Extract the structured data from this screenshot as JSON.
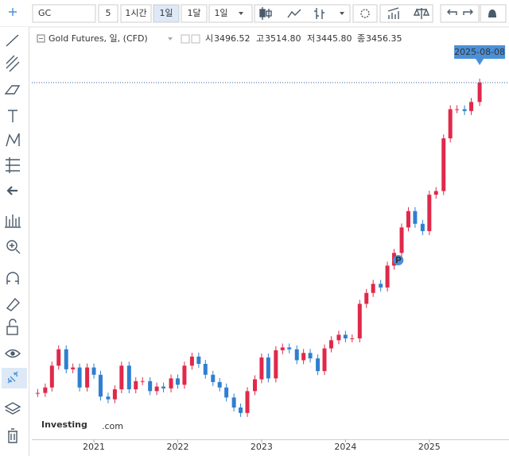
{
  "toolbar": {
    "symbol": "GC",
    "buttons": [
      "5",
      "1시간",
      "1일",
      "1달",
      "1일"
    ]
  },
  "chart_data": {
    "type": "candlestick",
    "title": "Gold Futures, 일, (CFD)",
    "ohlc": [
      {
        "label": "시",
        "value": "3496.52"
      },
      {
        "label": "고",
        "value": "3514.80"
      },
      {
        "label": "저",
        "value": "3445.80"
      },
      {
        "label": "종",
        "value": "3456.35"
      }
    ],
    "last_date": "2025-08-08",
    "marker": {
      "label": "P",
      "x": 2024.63,
      "y": 2480
    },
    "logo": [
      "Investing",
      ".com"
    ],
    "x": [
      2020.33,
      2020.42,
      2020.5,
      2020.58,
      2020.67,
      2020.75,
      2020.83,
      2020.92,
      2021.0,
      2021.08,
      2021.17,
      2021.25,
      2021.33,
      2021.42,
      2021.5,
      2021.58,
      2021.67,
      2021.75,
      2021.83,
      2021.92,
      2022.0,
      2022.08,
      2022.17,
      2022.25,
      2022.33,
      2022.42,
      2022.5,
      2022.58,
      2022.67,
      2022.75,
      2022.83,
      2022.92,
      2023.0,
      2023.08,
      2023.17,
      2023.25,
      2023.33,
      2023.42,
      2023.5,
      2023.58,
      2023.67,
      2023.75,
      2023.83,
      2023.92,
      2024.0,
      2024.08,
      2024.17,
      2024.25,
      2024.33,
      2024.42,
      2024.5,
      2024.58,
      2024.67,
      2024.75,
      2024.83,
      2024.92,
      2025.0,
      2025.08,
      2025.17,
      2025.25,
      2025.33,
      2025.42,
      2025.5,
      2025.6
    ],
    "values": [
      1750,
      1780,
      1900,
      1990,
      1880,
      1890,
      1780,
      1890,
      1850,
      1730,
      1715,
      1770,
      1900,
      1770,
      1815,
      1815,
      1760,
      1785,
      1775,
      1830,
      1795,
      1900,
      1950,
      1910,
      1850,
      1810,
      1780,
      1725,
      1670,
      1640,
      1760,
      1825,
      1945,
      1830,
      1985,
      2000,
      1990,
      1930,
      1970,
      1940,
      1870,
      1995,
      2040,
      2070,
      2050,
      2050,
      2240,
      2300,
      2350,
      2330,
      2450,
      2520,
      2660,
      2750,
      2680,
      2640,
      2840,
      2860,
      3150,
      3310,
      3310,
      3300,
      3350,
      3456.35
    ],
    "up_color": "#e0294a",
    "down_color": "#2f7fd0",
    "xlim": [
      2020.26,
      2025.95
    ],
    "ylim": [
      1530,
      3736
    ],
    "xticks": [
      2021,
      2022,
      2023,
      2024,
      2025
    ]
  }
}
